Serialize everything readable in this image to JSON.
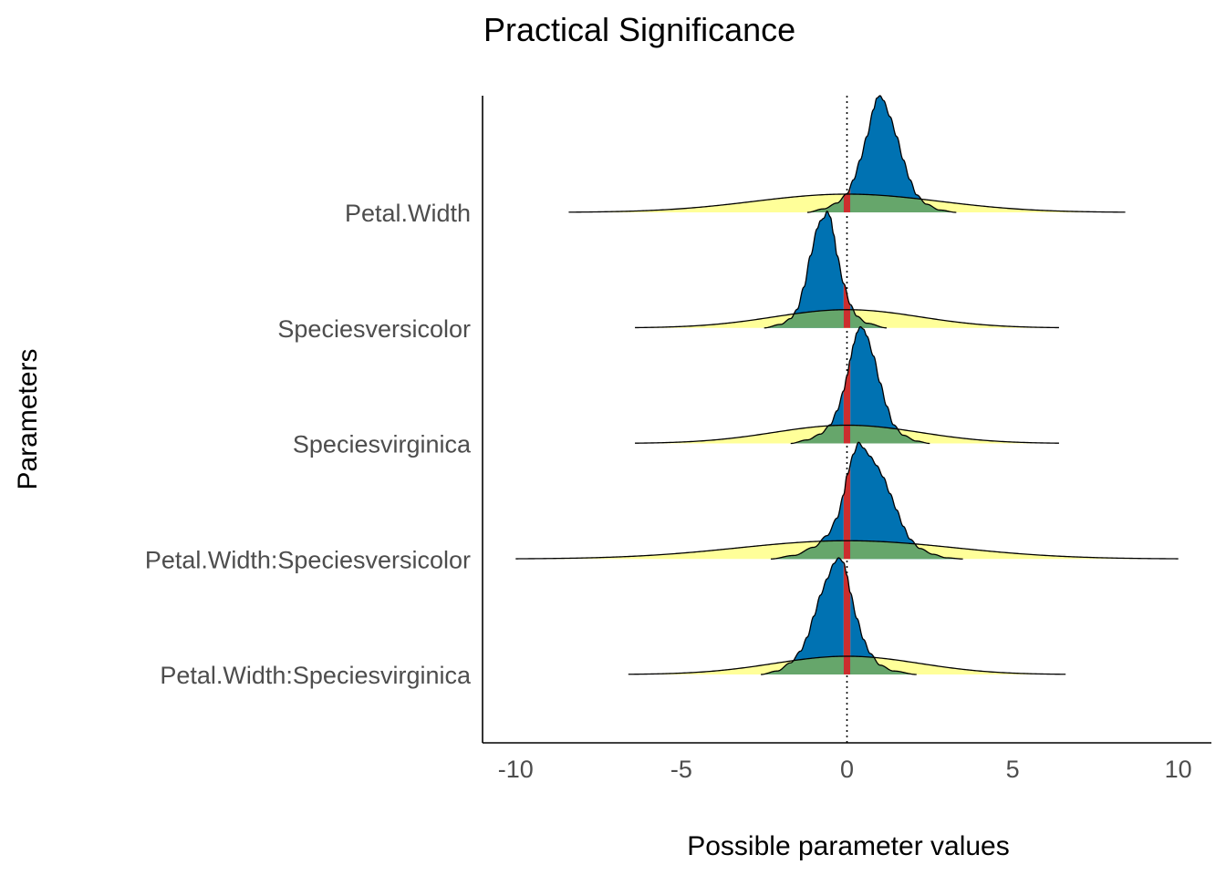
{
  "chart_data": {
    "type": "area",
    "title": "Practical Significance",
    "xlabel": "Possible parameter values",
    "ylabel": "Parameters",
    "xlim": [
      -11,
      11
    ],
    "xticks": [
      -10,
      -5,
      0,
      5,
      10
    ],
    "xtick_labels": [
      "-10",
      "-5",
      "0",
      "5",
      "10"
    ],
    "rope": [
      -0.1,
      0.1
    ],
    "reference_line": 0,
    "parameters": [
      {
        "label": "Petal.Width",
        "prior": {
          "min": -8.4,
          "max": 8.4,
          "sd": 2.8
        },
        "posterior": {
          "min": -1.2,
          "max": 3.3,
          "peak": 0.93,
          "x": [
            -1.2,
            -0.7,
            -0.3,
            0.0,
            0.2,
            0.4,
            0.6,
            0.8,
            0.9,
            1.0,
            1.1,
            1.3,
            1.5,
            1.7,
            1.9,
            2.1,
            2.4,
            2.8,
            3.3
          ],
          "density": [
            0.0,
            0.03,
            0.08,
            0.16,
            0.28,
            0.45,
            0.65,
            0.88,
            0.98,
            1.0,
            0.96,
            0.82,
            0.65,
            0.45,
            0.28,
            0.15,
            0.07,
            0.02,
            0.0
          ]
        }
      },
      {
        "label": "Speciesversicolor",
        "prior": {
          "min": -6.4,
          "max": 6.4,
          "sd": 2.2
        },
        "posterior": {
          "min": -2.5,
          "max": 1.2,
          "peak": -0.65,
          "x": [
            -2.5,
            -2.0,
            -1.7,
            -1.5,
            -1.3,
            -1.1,
            -0.9,
            -0.8,
            -0.7,
            -0.6,
            -0.5,
            -0.4,
            -0.3,
            -0.1,
            0.1,
            0.3,
            0.6,
            1.2
          ],
          "density": [
            0.0,
            0.03,
            0.08,
            0.16,
            0.35,
            0.62,
            0.85,
            0.92,
            0.94,
            1.0,
            0.95,
            0.8,
            0.62,
            0.38,
            0.2,
            0.1,
            0.04,
            0.0
          ]
        }
      },
      {
        "label": "Speciesvirginica",
        "prior": {
          "min": -6.4,
          "max": 6.4,
          "sd": 2.2
        },
        "posterior": {
          "min": -1.7,
          "max": 2.5,
          "peak": 0.42,
          "x": [
            -1.7,
            -1.2,
            -0.8,
            -0.5,
            -0.3,
            -0.1,
            0.0,
            0.1,
            0.2,
            0.3,
            0.4,
            0.5,
            0.6,
            0.8,
            1.0,
            1.2,
            1.4,
            1.7,
            2.1,
            2.5
          ],
          "density": [
            0.0,
            0.03,
            0.08,
            0.16,
            0.28,
            0.45,
            0.58,
            0.72,
            0.85,
            0.95,
            1.0,
            0.98,
            0.92,
            0.75,
            0.52,
            0.32,
            0.16,
            0.07,
            0.02,
            0.0
          ]
        }
      },
      {
        "label": "Petal.Width:Speciesversicolor",
        "prior": {
          "min": -10,
          "max": 10,
          "sd": 3.3
        },
        "posterior": {
          "min": -2.3,
          "max": 3.5,
          "peak": 0.35,
          "x": [
            -2.3,
            -1.6,
            -1.0,
            -0.6,
            -0.3,
            -0.1,
            0.0,
            0.2,
            0.35,
            0.5,
            0.7,
            0.9,
            1.1,
            1.3,
            1.5,
            1.7,
            1.9,
            2.2,
            2.6,
            3.0,
            3.5
          ],
          "density": [
            0.0,
            0.03,
            0.1,
            0.2,
            0.35,
            0.55,
            0.72,
            0.9,
            1.0,
            0.95,
            0.88,
            0.8,
            0.7,
            0.56,
            0.42,
            0.28,
            0.17,
            0.09,
            0.04,
            0.01,
            0.0
          ]
        }
      },
      {
        "label": "Petal.Width:Speciesvirginica",
        "prior": {
          "min": -6.6,
          "max": 6.6,
          "sd": 2.2
        },
        "posterior": {
          "min": -2.6,
          "max": 2.1,
          "peak": -0.25,
          "x": [
            -2.6,
            -2.1,
            -1.7,
            -1.4,
            -1.2,
            -1.0,
            -0.8,
            -0.6,
            -0.4,
            -0.25,
            -0.1,
            0.0,
            0.1,
            0.3,
            0.5,
            0.7,
            1.0,
            1.4,
            2.1
          ],
          "density": [
            0.0,
            0.03,
            0.1,
            0.2,
            0.32,
            0.5,
            0.68,
            0.82,
            0.95,
            1.0,
            0.96,
            0.85,
            0.7,
            0.48,
            0.3,
            0.18,
            0.08,
            0.03,
            0.0
          ]
        }
      }
    ],
    "colors": {
      "prior_fill": "#ffff99",
      "posterior_fill": "#0072b2",
      "overlap_fill": "#66a66b",
      "rope_fill": "#f4a300",
      "rope_posterior_fill": "#cc2e2e",
      "outline": "#000000",
      "prior_outline": "#6b6b2a",
      "axis_line": "#000000",
      "reference_line": "#000000"
    }
  }
}
